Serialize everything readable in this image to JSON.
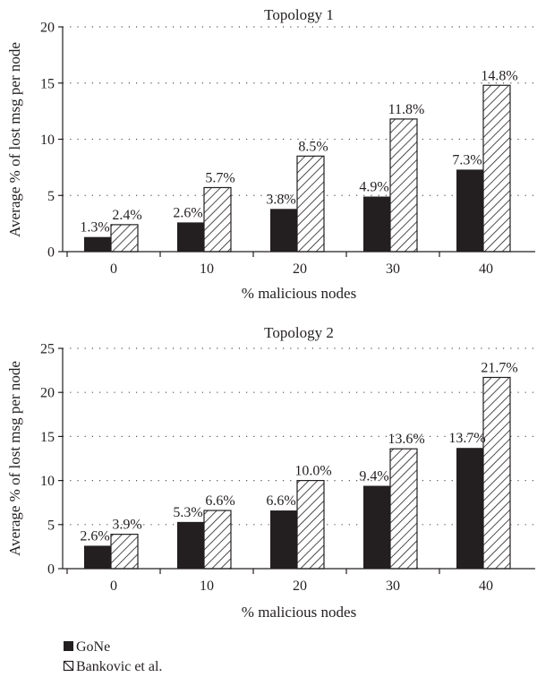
{
  "chart_data": [
    {
      "type": "bar",
      "title": "Topology 1",
      "xlabel": "% malicious nodes",
      "ylabel": "Average % of lost msg per node",
      "categories": [
        "0",
        "10",
        "20",
        "30",
        "40"
      ],
      "ylim": [
        0,
        20
      ],
      "yticks": [
        "0",
        "5",
        "10",
        "15",
        "20"
      ],
      "grid": "horizontal-dotted",
      "series": [
        {
          "name": "GoNe",
          "values": [
            1.3,
            2.6,
            3.8,
            4.9,
            7.3
          ],
          "labels": [
            "1.3%",
            "2.6%",
            "3.8%",
            "4.9%",
            "7.3%"
          ],
          "fill": "#231f20"
        },
        {
          "name": "Bankovic et al.",
          "values": [
            2.4,
            5.7,
            8.5,
            11.8,
            14.8
          ],
          "labels": [
            "2.4%",
            "5.7%",
            "8.5%",
            "11.8%",
            "14.8%"
          ],
          "fill": "hatched"
        }
      ]
    },
    {
      "type": "bar",
      "title": "Topology 2",
      "xlabel": "% malicious nodes",
      "ylabel": "Average % of lost msg per node",
      "categories": [
        "0",
        "10",
        "20",
        "30",
        "40"
      ],
      "ylim": [
        0,
        25
      ],
      "yticks": [
        "0",
        "5",
        "10",
        "15",
        "20",
        "25"
      ],
      "grid": "horizontal-dotted",
      "series": [
        {
          "name": "GoNe",
          "values": [
            2.6,
            5.3,
            6.6,
            9.4,
            13.7
          ],
          "labels": [
            "2.6%",
            "5.3%",
            "6.6%",
            "9.4%",
            "13.7%"
          ],
          "fill": "#231f20"
        },
        {
          "name": "Bankovic et al.",
          "values": [
            3.9,
            6.6,
            10.0,
            13.6,
            21.7
          ],
          "labels": [
            "3.9%",
            "6.6%",
            "10.0%",
            "13.6%",
            "21.7%"
          ],
          "fill": "hatched"
        }
      ]
    }
  ],
  "legend": {
    "placement": "bottom-left",
    "items": [
      {
        "label": "GoNe",
        "swatch": "solid"
      },
      {
        "label": "Bankovic et al.",
        "swatch": "hatched"
      }
    ]
  },
  "colors": {
    "ink": "#231f20",
    "paper": "#ffffff"
  }
}
